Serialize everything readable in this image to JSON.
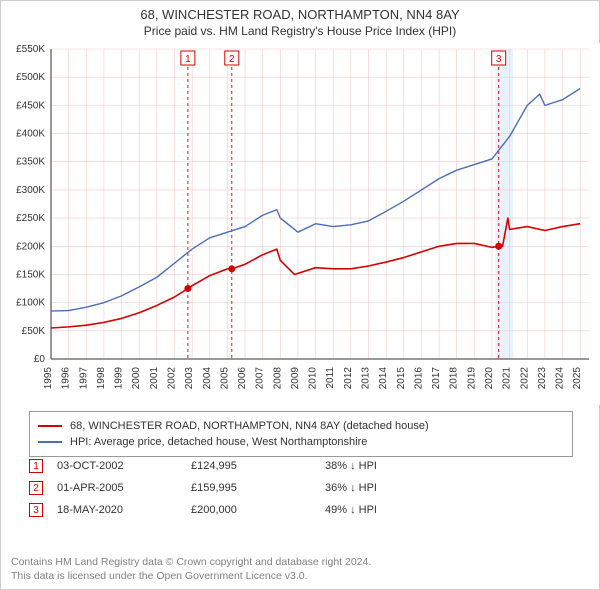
{
  "title_line1": "68, WINCHESTER ROAD, NORTHAMPTON, NN4 8AY",
  "title_line2": "Price paid vs. HM Land Registry's House Price Index (HPI)",
  "chart": {
    "type": "line",
    "background_color": "#ffffff",
    "grid_color": "#f3c9c9",
    "grid_major_color": "#e8a8a8",
    "axis_color": "#333333",
    "highlight_band_color": "#eaf1fb",
    "highlight_band_xrange": [
      2020.2,
      2021.2
    ],
    "xlim": [
      1995,
      2025.5
    ],
    "ylim": [
      0,
      550000
    ],
    "ytick_step": 50000,
    "ytick_prefix": "£",
    "ytick_suffix": "K",
    "xticks": [
      1995,
      1996,
      1997,
      1998,
      1999,
      2000,
      2001,
      2002,
      2003,
      2004,
      2005,
      2006,
      2007,
      2008,
      2009,
      2010,
      2011,
      2012,
      2013,
      2014,
      2015,
      2016,
      2017,
      2018,
      2019,
      2020,
      2021,
      2022,
      2023,
      2024,
      2025
    ],
    "series": [
      {
        "name": "property_price",
        "label": "68, WINCHESTER ROAD, NORTHAMPTON, NN4 8AY (detached house)",
        "color": "#d40000",
        "line_width": 1.6,
        "data": [
          [
            1995,
            55000
          ],
          [
            1996,
            57000
          ],
          [
            1997,
            60000
          ],
          [
            1998,
            65000
          ],
          [
            1999,
            72000
          ],
          [
            2000,
            82000
          ],
          [
            2001,
            95000
          ],
          [
            2002,
            110000
          ],
          [
            2002.76,
            124995
          ],
          [
            2003,
            130000
          ],
          [
            2004,
            148000
          ],
          [
            2005,
            159995
          ],
          [
            2005.25,
            159995
          ],
          [
            2006,
            168000
          ],
          [
            2007,
            185000
          ],
          [
            2007.8,
            195000
          ],
          [
            2008,
            175000
          ],
          [
            2008.8,
            150000
          ],
          [
            2009,
            152000
          ],
          [
            2010,
            162000
          ],
          [
            2011,
            160000
          ],
          [
            2012,
            160000
          ],
          [
            2013,
            165000
          ],
          [
            2014,
            172000
          ],
          [
            2015,
            180000
          ],
          [
            2016,
            190000
          ],
          [
            2017,
            200000
          ],
          [
            2018,
            205000
          ],
          [
            2019,
            205000
          ],
          [
            2020,
            198000
          ],
          [
            2020.38,
            200000
          ],
          [
            2020.6,
            200000
          ],
          [
            2020.9,
            250000
          ],
          [
            2021,
            230000
          ],
          [
            2022,
            235000
          ],
          [
            2023,
            228000
          ],
          [
            2024,
            235000
          ],
          [
            2025,
            240000
          ]
        ]
      },
      {
        "name": "hpi",
        "label": "HPI: Average price, detached house, West Northamptonshire",
        "color": "#4a6fb3",
        "line_width": 1.4,
        "data": [
          [
            1995,
            85000
          ],
          [
            1996,
            86000
          ],
          [
            1997,
            92000
          ],
          [
            1998,
            100000
          ],
          [
            1999,
            112000
          ],
          [
            2000,
            128000
          ],
          [
            2001,
            145000
          ],
          [
            2002,
            170000
          ],
          [
            2003,
            195000
          ],
          [
            2004,
            215000
          ],
          [
            2005,
            225000
          ],
          [
            2006,
            235000
          ],
          [
            2007,
            255000
          ],
          [
            2007.8,
            265000
          ],
          [
            2008,
            250000
          ],
          [
            2009,
            225000
          ],
          [
            2010,
            240000
          ],
          [
            2011,
            235000
          ],
          [
            2012,
            238000
          ],
          [
            2013,
            245000
          ],
          [
            2014,
            262000
          ],
          [
            2015,
            280000
          ],
          [
            2016,
            300000
          ],
          [
            2017,
            320000
          ],
          [
            2018,
            335000
          ],
          [
            2019,
            345000
          ],
          [
            2020,
            355000
          ],
          [
            2021,
            395000
          ],
          [
            2022,
            450000
          ],
          [
            2022.7,
            470000
          ],
          [
            2023,
            450000
          ],
          [
            2024,
            460000
          ],
          [
            2025,
            480000
          ]
        ]
      }
    ],
    "event_markers": [
      {
        "n": "1",
        "x": 2002.76,
        "color": "#d40000"
      },
      {
        "n": "2",
        "x": 2005.25,
        "color": "#d40000"
      },
      {
        "n": "3",
        "x": 2020.38,
        "color": "#d40000"
      }
    ],
    "event_points": [
      {
        "x": 2002.76,
        "y": 124995,
        "color": "#d40000"
      },
      {
        "x": 2005.25,
        "y": 159995,
        "color": "#d40000"
      },
      {
        "x": 2020.38,
        "y": 200000,
        "color": "#d40000"
      }
    ]
  },
  "legend": {
    "items": [
      {
        "color": "#d40000",
        "label": "68, WINCHESTER ROAD, NORTHAMPTON, NN4 8AY (detached house)"
      },
      {
        "color": "#4a6fb3",
        "label": "HPI: Average price, detached house, West Northamptonshire"
      }
    ]
  },
  "events": [
    {
      "n": "1",
      "color": "#d40000",
      "date": "03-OCT-2002",
      "price": "£124,995",
      "delta": "38% ↓ HPI"
    },
    {
      "n": "2",
      "color": "#d40000",
      "date": "01-APR-2005",
      "price": "£159,995",
      "delta": "36% ↓ HPI"
    },
    {
      "n": "3",
      "color": "#d40000",
      "date": "18-MAY-2020",
      "price": "£200,000",
      "delta": "49% ↓ HPI"
    }
  ],
  "footer_line1": "Contains HM Land Registry data © Crown copyright and database right 2024.",
  "footer_line2": "This data is licensed under the Open Government Licence v3.0."
}
